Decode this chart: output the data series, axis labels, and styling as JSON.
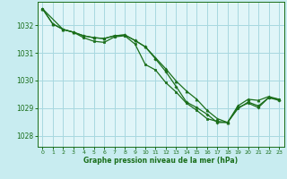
{
  "background_color": "#c8ecf0",
  "plot_bg_color": "#e0f5f8",
  "grid_color": "#a8d8e0",
  "line_color": "#1a6e1a",
  "marker_color": "#1a6e1a",
  "xlabel": "Graphe pression niveau de la mer (hPa)",
  "ylim": [
    1027.6,
    1032.85
  ],
  "yticks": [
    1028,
    1029,
    1030,
    1031,
    1032
  ],
  "xticks": [
    0,
    1,
    2,
    3,
    4,
    5,
    6,
    7,
    8,
    9,
    10,
    11,
    12,
    13,
    14,
    15,
    16,
    17,
    18,
    19,
    20,
    21,
    22,
    23
  ],
  "series1_x": [
    0,
    1,
    2,
    3,
    4,
    5,
    6,
    7,
    8,
    9,
    10,
    11,
    12,
    13,
    14,
    15,
    16,
    17,
    18,
    19,
    20,
    21,
    22,
    23
  ],
  "series1_y": [
    1032.6,
    1032.05,
    1031.85,
    1031.75,
    1031.62,
    1031.55,
    1031.52,
    1031.62,
    1031.65,
    1031.45,
    1031.22,
    1030.82,
    1030.42,
    1029.98,
    1029.62,
    1029.32,
    1028.92,
    1028.62,
    1028.48,
    1029.08,
    1029.32,
    1029.28,
    1029.42,
    1029.32
  ],
  "series2_x": [
    0,
    1,
    2,
    3,
    4,
    5,
    6,
    7,
    8,
    9,
    10,
    11,
    12,
    13,
    14,
    15,
    16,
    17,
    18,
    19,
    20,
    21,
    22,
    23
  ],
  "series2_y": [
    1032.6,
    1032.05,
    1031.85,
    1031.75,
    1031.62,
    1031.55,
    1031.52,
    1031.62,
    1031.65,
    1031.45,
    1031.22,
    1030.78,
    1030.32,
    1029.78,
    1029.22,
    1029.02,
    1028.78,
    1028.48,
    1028.48,
    1029.02,
    1029.18,
    1029.02,
    1029.38,
    1029.28
  ],
  "series3_x": [
    0,
    2,
    3,
    4,
    5,
    6,
    7,
    8,
    9,
    10,
    11,
    12,
    13,
    14,
    15,
    16,
    17,
    18,
    19,
    20,
    21,
    22,
    23
  ],
  "series3_y": [
    1032.6,
    1031.85,
    1031.75,
    1031.55,
    1031.42,
    1031.38,
    1031.58,
    1031.62,
    1031.32,
    1030.58,
    1030.38,
    1029.92,
    1029.58,
    1029.18,
    1028.92,
    1028.62,
    1028.52,
    1028.48,
    1028.98,
    1029.22,
    1029.08,
    1029.38,
    1029.32
  ]
}
